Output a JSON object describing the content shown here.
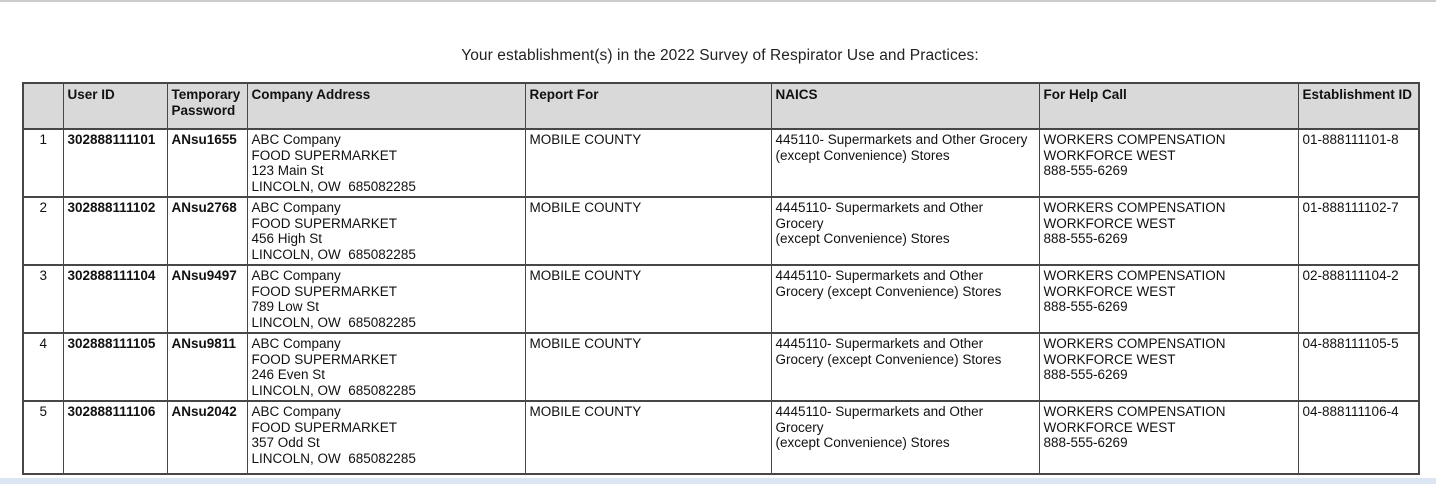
{
  "page": {
    "title": "Your establishment(s) in the 2022 Survey of Respirator Use and Practices:"
  },
  "table": {
    "columns": [
      {
        "key": "row_num",
        "label": ""
      },
      {
        "key": "user_id",
        "label": "User ID"
      },
      {
        "key": "password",
        "label": "Temporary Password"
      },
      {
        "key": "address",
        "label": "Company Address"
      },
      {
        "key": "report_for",
        "label": "Report For"
      },
      {
        "key": "naics",
        "label": "NAICS"
      },
      {
        "key": "help",
        "label": "For Help Call"
      },
      {
        "key": "est_id",
        "label": "Establishment ID"
      }
    ],
    "rows": [
      {
        "row_num": "1",
        "user_id": "302888111101",
        "password": "ANsu1655",
        "address": "ABC Company\nFOOD SUPERMARKET\n123 Main St\nLINCOLN, OW  685082285",
        "report_for": "MOBILE COUNTY",
        "naics": "445110- Supermarkets and Other Grocery\n(except Convenience) Stores",
        "help": "WORKERS COMPENSATION\nWORKFORCE WEST\n888-555-6269",
        "est_id": "01-888111101-8"
      },
      {
        "row_num": "2",
        "user_id": "302888111102",
        "password": "ANsu2768",
        "address": "ABC Company\nFOOD SUPERMARKET\n456 High St\nLINCOLN, OW  685082285",
        "report_for": "MOBILE COUNTY",
        "naics": "4445110- Supermarkets and Other Grocery\n(except Convenience) Stores",
        "help": "WORKERS COMPENSATION\nWORKFORCE WEST\n888-555-6269",
        "est_id": "01-888111102-7"
      },
      {
        "row_num": "3",
        "user_id": "302888111104",
        "password": "ANsu9497",
        "address": "ABC Company\nFOOD SUPERMARKET\n789 Low St\nLINCOLN, OW  685082285",
        "report_for": "MOBILE COUNTY",
        "naics": "4445110- Supermarkets and Other\nGrocery (except Convenience) Stores",
        "help": "WORKERS COMPENSATION\nWORKFORCE WEST\n888-555-6269",
        "est_id": "02-888111104-2"
      },
      {
        "row_num": "4",
        "user_id": "302888111105",
        "password": "ANsu9811",
        "address": "ABC Company\nFOOD SUPERMARKET\n246 Even St\nLINCOLN, OW  685082285",
        "report_for": "MOBILE COUNTY",
        "naics": "4445110- Supermarkets and Other\nGrocery (except Convenience) Stores",
        "help": "WORKERS COMPENSATION\nWORKFORCE WEST\n888-555-6269",
        "est_id": "04-888111105-5"
      },
      {
        "row_num": "5",
        "user_id": "302888111106",
        "password": "ANsu2042",
        "address": "ABC Company\nFOOD SUPERMARKET\n357 Odd St\nLINCOLN, OW  685082285",
        "report_for": "MOBILE COUNTY",
        "naics": "4445110- Supermarkets and Other Grocery\n(except Convenience) Stores",
        "help": "WORKERS COMPENSATION\nWORKFORCE WEST\n888-555-6269",
        "est_id": "04-888111106-4"
      }
    ]
  }
}
